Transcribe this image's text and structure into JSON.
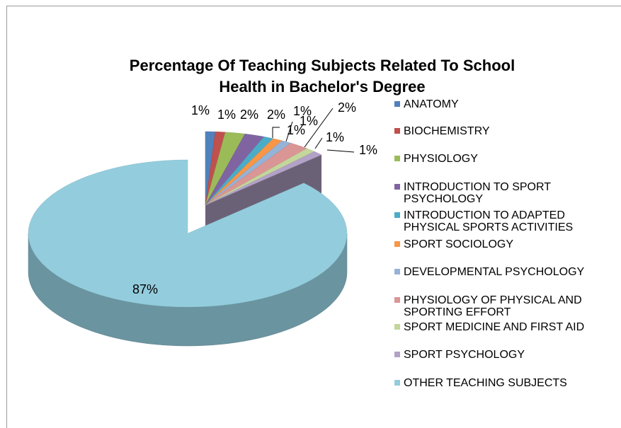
{
  "chart_data": {
    "type": "pie",
    "title": "Percentage Of Teaching Subjects Related To School Health in Bachelor's Degree",
    "categories": [
      "ANATOMY",
      "BIOCHEMISTRY",
      "PHYSIOLOGY",
      "INTRODUCTION TO SPORT PSYCHOLOGY",
      "INTRODUCTION TO ADAPTED PHYSICAL SPORTS ACTIVITIES",
      "SPORT SOCIOLOGY",
      "DEVELOPMENTAL PSYCHOLOGY",
      "PHYSIOLOGY OF PHYSICAL AND SPORTING EFFORT",
      "SPORT MEDICINE AND FIRST AID",
      "SPORT PSYCHOLOGY",
      "OTHER TEACHING SUBJECTS"
    ],
    "values": [
      1,
      1,
      2,
      2,
      1,
      1,
      1,
      2,
      1,
      1,
      87
    ],
    "value_labels": [
      "1%",
      "1%",
      "2%",
      "2%",
      "1%",
      "1%",
      "1%",
      "2%",
      "1%",
      "1%",
      "87%"
    ],
    "colors": [
      "#4f81bd",
      "#c0504d",
      "#9bbb59",
      "#8064a2",
      "#4bacc6",
      "#f79646",
      "#95b3d7",
      "#d99694",
      "#c3d69b",
      "#b3a2c7",
      "#93cddd"
    ],
    "legend": "right"
  }
}
